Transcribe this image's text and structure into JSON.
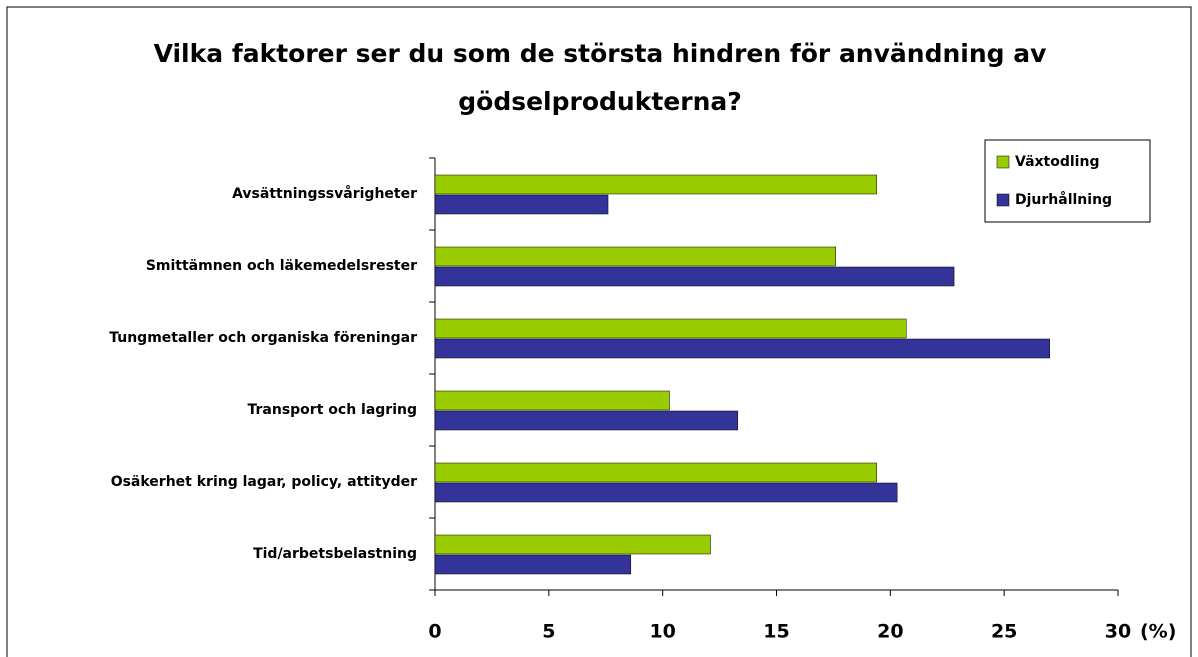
{
  "chart_data": {
    "type": "hbar",
    "title": "Vilka faktorer ser du som de största hindren för användning av gödselprodukterna?",
    "categories": [
      "Avsättningssvårigheter",
      "Smittämnen  och läkemedelsrester",
      "Tungmetaller och organiska föreningar",
      "Transport och lagring",
      "Osäkerhet kring lagar, policy, attityder",
      "Tid/arbetsbelastning"
    ],
    "series": [
      {
        "name": "Växtodling",
        "color": "#99cc00",
        "values": [
          19.4,
          17.6,
          20.7,
          10.3,
          19.4,
          12.1
        ]
      },
      {
        "name": "Djurhållning",
        "color": "#333399",
        "values": [
          7.6,
          22.8,
          27.0,
          13.3,
          20.3,
          8.6
        ]
      }
    ],
    "xlabel": "(%)",
    "xlim": [
      0,
      30
    ],
    "xticks": [
      0,
      5,
      10,
      15,
      20,
      25,
      30
    ],
    "legend": "top-right"
  }
}
